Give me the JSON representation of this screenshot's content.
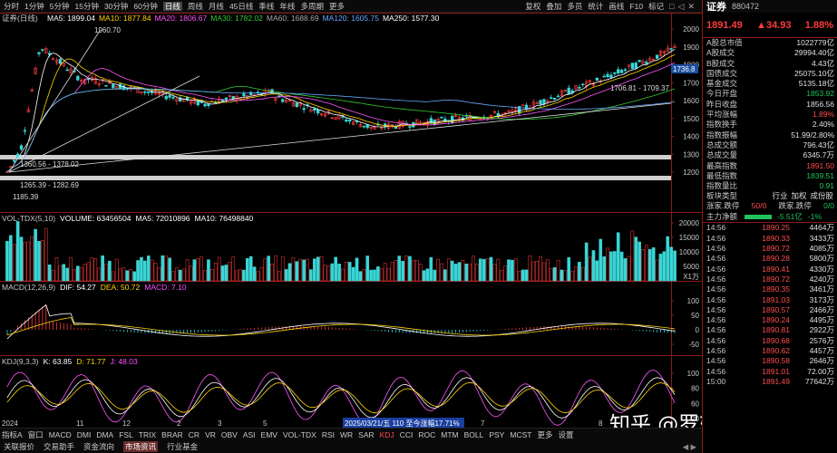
{
  "toolbar": {
    "periods": [
      "分时",
      "1分钟",
      "5分钟",
      "15分钟",
      "30分钟",
      "60分钟",
      "日线",
      "周线",
      "月线",
      "45日线",
      "季线",
      "年线",
      "多周期",
      "更多"
    ],
    "active_period": "日线",
    "tools": [
      "复权",
      "叠加",
      "多员",
      "统计",
      "画线",
      "F10",
      "标记"
    ],
    "icons": [
      "window-icon",
      "back-icon",
      "close-icon"
    ]
  },
  "main_chart": {
    "title": "证券(日线)",
    "ma_labels": [
      {
        "text": "MA5: 1899.04",
        "color": "#ffffff"
      },
      {
        "text": "MA10: 1877.84",
        "color": "#ffd400"
      },
      {
        "text": "MA20: 1806.67",
        "color": "#ff55ff"
      },
      {
        "text": "MA30: 1782.02",
        "color": "#33cc33"
      },
      {
        "text": "MA60: 1688.69",
        "color": "#aaaaaa"
      },
      {
        "text": "MA120: 1605.75",
        "color": "#66aaff"
      },
      {
        "text": "MA250: 1577.30",
        "color": "#ffffff"
      }
    ],
    "y_axis": [
      "2000",
      "1900",
      "1800",
      "1700",
      "1600",
      "1500",
      "1400",
      "1300",
      "1200"
    ],
    "price_marker": "1736.8",
    "annotations": {
      "high": "1960.70",
      "low": "1185.39",
      "right_range": "1706.81 - 1709.37",
      "band_1": "1360.56 - 1378.02",
      "band_2": "1265.39 - 1282.69"
    }
  },
  "volume_chart": {
    "labels": [
      {
        "text": "VOL-TDX(5,10)",
        "color": "#c8c8c8"
      },
      {
        "text": "VOLUME: 63456504",
        "color": "#ffffff"
      },
      {
        "text": "MA5: 72010896",
        "color": "#ffffff"
      },
      {
        "text": "MA10: 76498840",
        "color": "#ffffff"
      }
    ],
    "y_axis": [
      "20000",
      "15000",
      "10000",
      "5000"
    ],
    "unit": "X1万"
  },
  "macd_chart": {
    "labels": [
      {
        "text": "MACD(12,26,9)",
        "color": "#c8c8c8"
      },
      {
        "text": "DIF: 54.27",
        "color": "#ffffff"
      },
      {
        "text": "DEA: 50.72",
        "color": "#ffd400"
      },
      {
        "text": "MACD: 7.10",
        "color": "#ff55ff"
      }
    ],
    "y_axis": [
      "100",
      "50",
      "0",
      "-50"
    ]
  },
  "kdj_chart": {
    "labels": [
      {
        "text": "KDJ(9,3,3)",
        "color": "#c8c8c8"
      },
      {
        "text": "K: 63.85",
        "color": "#ffffff"
      },
      {
        "text": "D: 71.77",
        "color": "#ffd400"
      },
      {
        "text": "J: 48.03",
        "color": "#ff55ff"
      }
    ],
    "y_axis": [
      "100",
      "80",
      "60",
      "20"
    ]
  },
  "x_axis": {
    "labels": [
      "2024",
      "11",
      "12",
      "2",
      "3",
      "5",
      "6",
      "7",
      "8"
    ],
    "highlight": "2025/03/21/五 110 至今涨幅17.71%"
  },
  "indicator_tabs": [
    "指标A",
    "窗口",
    "MACD",
    "DMI",
    "DMA",
    "FSL",
    "TRIX",
    "BRAR",
    "CR",
    "VR",
    "OBV",
    "ASI",
    "EMV",
    "VOL-TDX",
    "RSI",
    "WR",
    "SAR",
    "KDJ",
    "CCI",
    "ROC",
    "MTM",
    "BOLL",
    "PSY",
    "MCST",
    "更多",
    "设置"
  ],
  "active_indicator": "KDJ",
  "bottom_tabs": [
    "关联报价",
    "交易助手",
    "资金流向",
    "市场资讯",
    "行业基金"
  ],
  "active_bottom_tab": "市场资讯",
  "right_panel": {
    "name": "证券",
    "code": "880472",
    "price": "1891.49",
    "change": "▲34.93",
    "change_pct": "1.88%",
    "stats_1": [
      {
        "k": "A股总市值",
        "v": "1022779亿",
        "c": "white"
      },
      {
        "k": "A股成交",
        "v": "29994.40亿",
        "c": "white"
      },
      {
        "k": "B股成交",
        "v": "4.43亿",
        "c": "white"
      },
      {
        "k": "国债成交",
        "v": "25075.10亿",
        "c": "white"
      },
      {
        "k": "基金成交",
        "v": "5135.18亿",
        "c": "white"
      }
    ],
    "stats_2": [
      {
        "k": "今日开盘",
        "v": "1853.92",
        "c": "green"
      },
      {
        "k": "昨日收盘",
        "v": "1856.56",
        "c": "white"
      },
      {
        "k": "平均涨幅",
        "v": "1.89%",
        "c": "red"
      },
      {
        "k": "指数换手",
        "v": "2.40%",
        "c": "white"
      },
      {
        "k": "指数振幅",
        "v": "51.99/2.80%",
        "c": "white"
      },
      {
        "k": "总成交额",
        "v": "796.43亿",
        "c": "white"
      },
      {
        "k": "总成交量",
        "v": "6345.7万",
        "c": "white"
      },
      {
        "k": "最高指数",
        "v": "1891.50",
        "c": "red"
      },
      {
        "k": "最低指数",
        "v": "1839.51",
        "c": "green"
      },
      {
        "k": "指数量比",
        "v": "0.91",
        "c": "green"
      }
    ],
    "board_label": "板块类型",
    "board_tabs": [
      "行业",
      "加权",
      "成份股"
    ],
    "updown": {
      "k1": "涨家.跌停",
      "v1": "50/0",
      "k2": "跌家.跌停",
      "v2": "0/0"
    },
    "flow": {
      "k": "主力净额",
      "v1": "-5.51亿",
      "v2": "-1%"
    },
    "ticks": [
      {
        "t": "14:56",
        "p": "1890.25",
        "q": "4464万"
      },
      {
        "t": "14:56",
        "p": "1890.33",
        "q": "3433万"
      },
      {
        "t": "14:56",
        "p": "1890.72",
        "q": "4085万"
      },
      {
        "t": "14:56",
        "p": "1890.28",
        "q": "5800万"
      },
      {
        "t": "14:56",
        "p": "1890.41",
        "q": "4330万"
      },
      {
        "t": "14:56",
        "p": "1890.72",
        "q": "4240万"
      },
      {
        "t": "14:56",
        "p": "1890.35",
        "q": "3461万"
      },
      {
        "t": "14:56",
        "p": "1891.03",
        "q": "3173万"
      },
      {
        "t": "14:56",
        "p": "1890.57",
        "q": "2466万"
      },
      {
        "t": "14:56",
        "p": "1890.24",
        "q": "4495万"
      },
      {
        "t": "14:56",
        "p": "1890.81",
        "q": "2922万"
      },
      {
        "t": "14:56",
        "p": "1890.68",
        "q": "2576万"
      },
      {
        "t": "14:56",
        "p": "1890.62",
        "q": "4457万"
      },
      {
        "t": "14:56",
        "p": "1890.58",
        "q": "2646万"
      },
      {
        "t": "14:56",
        "p": "1891.01",
        "q": "72.00万"
      },
      {
        "t": "15:00",
        "p": "1891.49",
        "q": "77642万"
      }
    ]
  },
  "watermark": "知乎 @罗辑工作室"
}
